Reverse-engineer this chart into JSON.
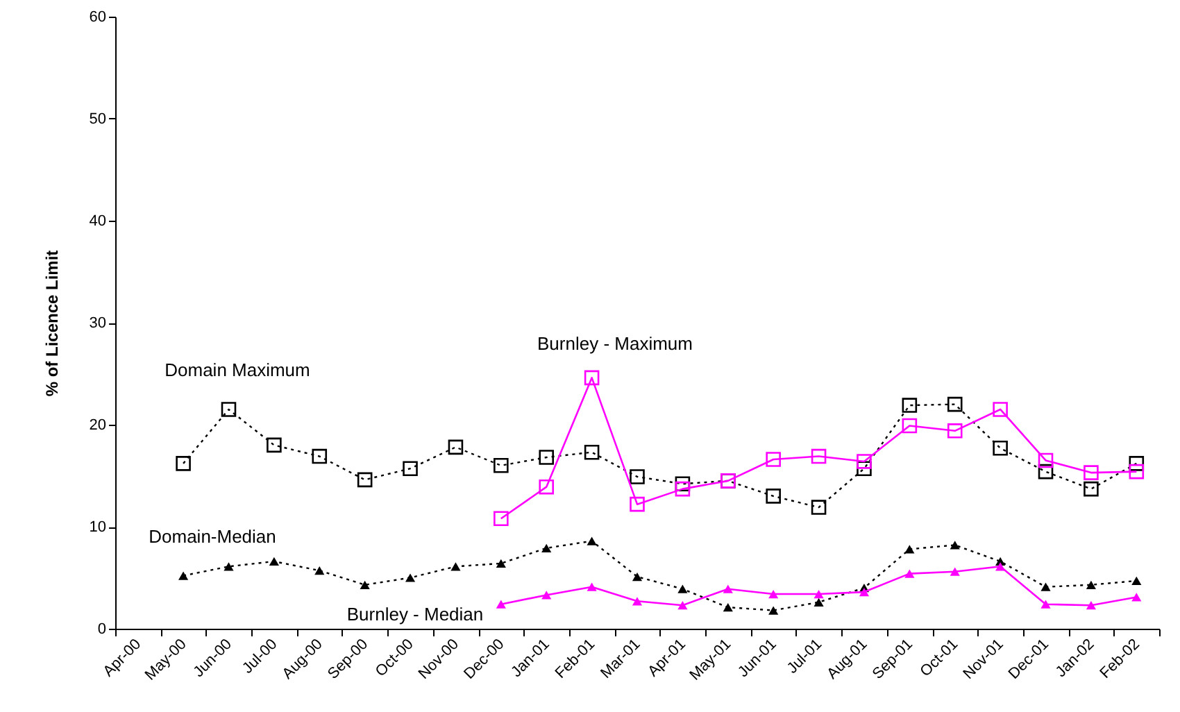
{
  "chart_data": {
    "type": "line",
    "ylabel": "% of Licence Limit",
    "categories": [
      "Apr-00",
      "May-00",
      "Jun-00",
      "Jul-00",
      "Aug-00",
      "Sep-00",
      "Oct-00",
      "Nov-00",
      "Dec-00",
      "Jan-01",
      "Feb-01",
      "Mar-01",
      "Apr-01",
      "May-01",
      "Jun-01",
      "Jul-01",
      "Aug-01",
      "Sep-01",
      "Oct-01",
      "Nov-01",
      "Dec-01",
      "Jan-02",
      "Feb-02"
    ],
    "ylim": [
      0,
      60
    ],
    "yticks": [
      0,
      10,
      20,
      30,
      40,
      50,
      60
    ],
    "grid": false,
    "series": [
      {
        "color": "#000000",
        "marker": "square",
        "line_style": "dotted",
        "values": [
          null,
          16.2,
          21.5,
          18.0,
          16.9,
          14.6,
          15.7,
          17.8,
          16.0,
          16.8,
          17.3,
          14.9,
          14.2,
          14.5,
          13.0,
          11.9,
          15.7,
          21.9,
          22.0,
          17.7,
          15.4,
          13.7,
          16.2
        ]
      },
      {
        "color": "#ff00ff",
        "marker": "square",
        "line_style": "solid",
        "values": [
          null,
          null,
          null,
          null,
          null,
          null,
          null,
          null,
          10.8,
          13.9,
          24.6,
          12.2,
          13.7,
          14.5,
          16.6,
          16.9,
          16.4,
          19.9,
          19.4,
          21.5,
          16.5,
          15.3,
          15.4
        ]
      },
      {
        "color": "#000000",
        "marker": "triangle",
        "line_style": "dotted",
        "values": [
          null,
          5.2,
          6.1,
          6.6,
          5.7,
          4.3,
          5.0,
          6.1,
          6.4,
          7.9,
          8.6,
          5.1,
          3.9,
          2.1,
          1.8,
          2.6,
          4.0,
          7.8,
          8.2,
          6.6,
          4.1,
          4.3,
          4.7
        ]
      },
      {
        "color": "#ff00ff",
        "marker": "triangle",
        "line_style": "solid",
        "values": [
          null,
          null,
          null,
          null,
          null,
          null,
          null,
          null,
          2.4,
          3.3,
          4.1,
          2.7,
          2.3,
          3.9,
          3.4,
          3.4,
          3.6,
          5.4,
          5.6,
          6.1,
          2.4,
          2.3,
          3.1
        ]
      }
    ],
    "annotations": [
      "Domain Maximum",
      "Burnley - Maximum",
      "Domain-Median",
      "Burnley - Median"
    ]
  }
}
